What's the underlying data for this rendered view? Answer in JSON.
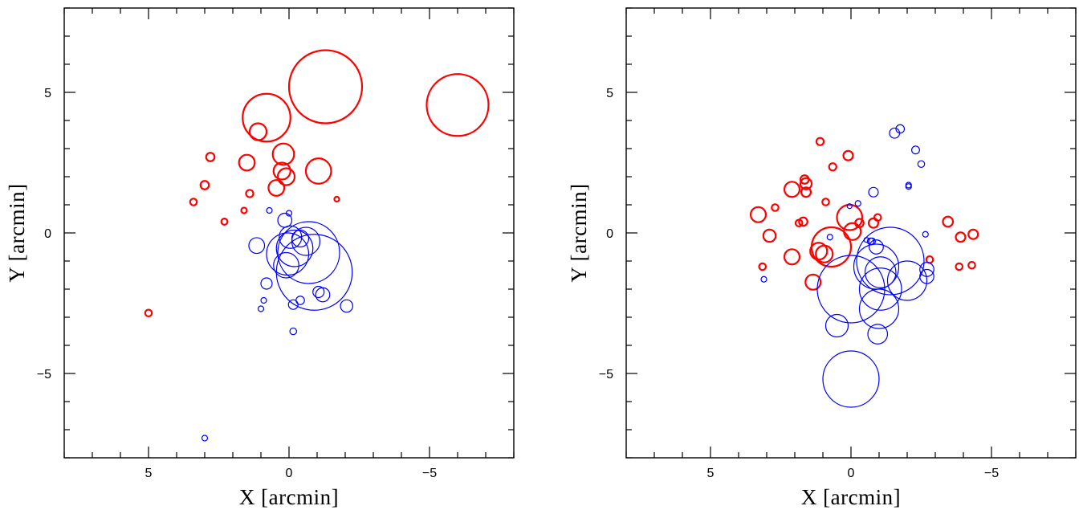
{
  "chart_data": [
    {
      "type": "scatter",
      "title": "",
      "xlabel": "X [arcmin]",
      "ylabel": "Y [arcmin]",
      "xlim": [
        8,
        -8
      ],
      "ylim": [
        -8,
        8
      ],
      "xticks": [
        5,
        0,
        -5
      ],
      "yticks": [
        5,
        0,
        -5
      ],
      "xtick_labels": [
        "5",
        "0",
        "−5"
      ],
      "ytick_labels": [
        "5",
        "0",
        "−5"
      ],
      "marker": "open circle, radius proportional to source size (arcmin)",
      "series": [
        {
          "color": "#ff0000",
          "points": [
            [
              -1.3,
              5.2,
              1.3
            ],
            [
              -6.0,
              4.55,
              1.1
            ],
            [
              0.8,
              4.1,
              0.85
            ],
            [
              1.1,
              3.6,
              0.3
            ],
            [
              0.2,
              2.8,
              0.38
            ],
            [
              2.8,
              2.7,
              0.15
            ],
            [
              1.5,
              2.5,
              0.28
            ],
            [
              0.25,
              2.2,
              0.3
            ],
            [
              -1.05,
              2.2,
              0.45
            ],
            [
              0.1,
              2.0,
              0.3
            ],
            [
              3.0,
              1.7,
              0.15
            ],
            [
              0.45,
              1.6,
              0.28
            ],
            [
              1.4,
              1.4,
              0.13
            ],
            [
              3.4,
              1.1,
              0.12
            ],
            [
              1.6,
              0.8,
              0.1
            ],
            [
              2.3,
              0.4,
              0.11
            ],
            [
              -1.7,
              1.2,
              0.08
            ],
            [
              5.0,
              -2.85,
              0.12
            ]
          ]
        },
        {
          "color": "#0000ff",
          "points": [
            [
              -0.9,
              -1.4,
              1.35
            ],
            [
              -0.7,
              -0.7,
              1.1
            ],
            [
              -0.2,
              -0.55,
              0.65
            ],
            [
              0.05,
              -0.75,
              0.75
            ],
            [
              -0.6,
              -0.3,
              0.5
            ],
            [
              -0.4,
              -0.2,
              0.3
            ],
            [
              -0.05,
              -0.15,
              0.4
            ],
            [
              0.15,
              0.45,
              0.25
            ],
            [
              1.15,
              -0.45,
              0.28
            ],
            [
              0.8,
              -1.8,
              0.2
            ],
            [
              0.1,
              -1.15,
              0.45
            ],
            [
              -1.2,
              -2.2,
              0.25
            ],
            [
              -1.05,
              -2.1,
              0.2
            ],
            [
              -2.05,
              -2.6,
              0.22
            ],
            [
              -0.15,
              -2.55,
              0.17
            ],
            [
              -0.4,
              -2.4,
              0.15
            ],
            [
              0.9,
              -2.4,
              0.1
            ],
            [
              1.0,
              -2.7,
              0.1
            ],
            [
              -0.15,
              -3.5,
              0.12
            ],
            [
              0.7,
              0.8,
              0.1
            ],
            [
              0.0,
              0.7,
              0.1
            ],
            [
              3.0,
              -7.3,
              0.1
            ]
          ]
        }
      ]
    },
    {
      "type": "scatter",
      "title": "",
      "xlabel": "X [arcmin]",
      "ylabel": "Y [arcmin]",
      "xlim": [
        8,
        -8
      ],
      "ylim": [
        -8,
        8
      ],
      "xticks": [
        5,
        0,
        -5
      ],
      "yticks": [
        5,
        0,
        -5
      ],
      "xtick_labels": [
        "5",
        "0",
        "−5"
      ],
      "ytick_labels": [
        "5",
        "0",
        "−5"
      ],
      "marker": "open circle, radius proportional to source size (arcmin)",
      "series": [
        {
          "color": "#ff0000",
          "points": [
            [
              0.7,
              -0.5,
              0.7
            ],
            [
              0.05,
              0.55,
              0.45
            ],
            [
              0.95,
              -0.75,
              0.3
            ],
            [
              1.15,
              -0.65,
              0.3
            ],
            [
              -0.05,
              0.05,
              0.3
            ],
            [
              3.3,
              0.65,
              0.27
            ],
            [
              2.9,
              -0.1,
              0.22
            ],
            [
              2.1,
              -0.85,
              0.27
            ],
            [
              2.1,
              1.55,
              0.27
            ],
            [
              1.6,
              1.75,
              0.2
            ],
            [
              1.6,
              1.45,
              0.17
            ],
            [
              1.65,
              1.9,
              0.15
            ],
            [
              1.7,
              0.4,
              0.15
            ],
            [
              1.85,
              0.35,
              0.12
            ],
            [
              2.7,
              0.9,
              0.12
            ],
            [
              1.35,
              -1.75,
              0.27
            ],
            [
              -0.3,
              0.35,
              0.15
            ],
            [
              0.1,
              2.75,
              0.17
            ],
            [
              1.1,
              3.25,
              0.13
            ],
            [
              0.65,
              2.35,
              0.13
            ],
            [
              0.9,
              1.1,
              0.12
            ],
            [
              -0.95,
              0.55,
              0.12
            ],
            [
              3.15,
              -1.2,
              0.12
            ],
            [
              -3.45,
              0.4,
              0.18
            ],
            [
              -3.9,
              -0.15,
              0.17
            ],
            [
              -4.35,
              -0.05,
              0.17
            ],
            [
              -2.8,
              -0.95,
              0.12
            ],
            [
              -3.85,
              -1.2,
              0.12
            ],
            [
              -4.3,
              -1.15,
              0.12
            ],
            [
              -0.8,
              0.35,
              0.17
            ]
          ]
        },
        {
          "color": "#0000ff",
          "points": [
            [
              -1.4,
              -1.0,
              1.2
            ],
            [
              0.0,
              -2.0,
              1.2
            ],
            [
              -0.9,
              -1.2,
              0.8
            ],
            [
              -1.05,
              -2.0,
              0.75
            ],
            [
              -1.0,
              -2.7,
              0.7
            ],
            [
              -2.0,
              -1.7,
              0.7
            ],
            [
              -1.05,
              -1.4,
              0.55
            ],
            [
              0.5,
              -3.3,
              0.4
            ],
            [
              0.0,
              -5.2,
              1.0
            ],
            [
              -0.95,
              -3.6,
              0.35
            ],
            [
              -2.7,
              -1.55,
              0.25
            ],
            [
              -2.7,
              -1.3,
              0.25
            ],
            [
              -0.9,
              -0.5,
              0.25
            ],
            [
              -0.75,
              -0.3,
              0.12
            ],
            [
              -0.55,
              -0.25,
              0.08
            ],
            [
              -0.8,
              1.45,
              0.17
            ],
            [
              -1.55,
              3.55,
              0.18
            ],
            [
              -1.75,
              3.7,
              0.15
            ],
            [
              -2.3,
              2.95,
              0.14
            ],
            [
              -2.5,
              2.45,
              0.12
            ],
            [
              -2.05,
              1.7,
              0.1
            ],
            [
              -2.05,
              1.65,
              0.1
            ],
            [
              -0.25,
              1.05,
              0.1
            ],
            [
              0.75,
              -0.15,
              0.1
            ],
            [
              -2.65,
              -0.05,
              0.1
            ],
            [
              3.1,
              -1.65,
              0.1
            ],
            [
              -0.7,
              -0.3,
              0.12
            ],
            [
              0.05,
              0.95,
              0.08
            ]
          ]
        }
      ]
    }
  ]
}
